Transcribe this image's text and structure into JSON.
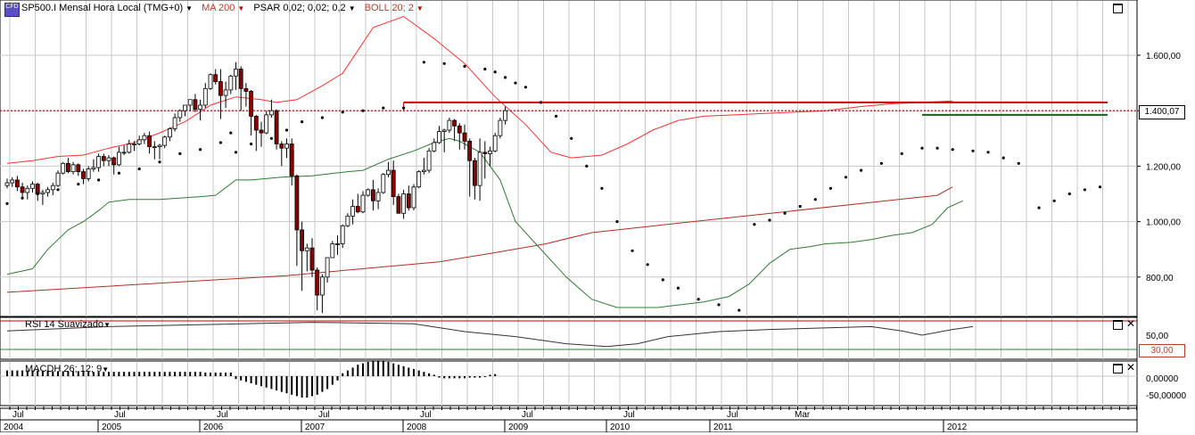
{
  "header": {
    "symbol": "SP500.I",
    "period": "Mensal",
    "timezone": "Hora Local (TMG+0)",
    "ma_label": "MA 200",
    "psar_label": "PSAR 0,02; 0,02; 0,2",
    "boll_label": "BOLL 20; 2"
  },
  "rsi_pane": {
    "label": "RSI 14 Suavizado",
    "level_label": "30,00",
    "ticks": [
      "50,00"
    ]
  },
  "macd_pane": {
    "label": "MACDH 26; 12; 9",
    "ticks": [
      "0,00000",
      "-50,00000"
    ]
  },
  "price_axis": {
    "ticks": [
      "1.600,00",
      "1.400,00",
      "1.200,00",
      "1.000,00",
      "800,00"
    ],
    "last_price": "1.400,07"
  },
  "time_axis": {
    "years": [
      "2004",
      "2005",
      "2006",
      "2007",
      "2008",
      "2009",
      "2010",
      "2011",
      "2012"
    ],
    "months": [
      "Jul",
      "Jul",
      "Jul",
      "Jul",
      "Jul",
      "Jul",
      "Jul",
      "Jul",
      "Mar"
    ]
  },
  "colors": {
    "up": "#ffffff",
    "down": "#8b0000",
    "bollinger_upper": "#ff3030",
    "bollinger_lower": "#2e7d32",
    "ma": "#b03020",
    "resistance": "#cc0000",
    "support": "#1b5e20",
    "grid": "#c8c8c8"
  },
  "chart_data": {
    "type": "candlestick",
    "y_range": [
      680,
      1760
    ],
    "start": "2004-01",
    "last_price": 1400.07,
    "candles": [
      [
        1130,
        1155,
        1120,
        1140
      ],
      [
        1140,
        1160,
        1125,
        1150
      ],
      [
        1150,
        1165,
        1110,
        1125
      ],
      [
        1125,
        1140,
        1085,
        1105
      ],
      [
        1105,
        1130,
        1080,
        1120
      ],
      [
        1120,
        1145,
        1105,
        1135
      ],
      [
        1135,
        1140,
        1075,
        1100
      ],
      [
        1100,
        1115,
        1060,
        1105
      ],
      [
        1105,
        1125,
        1090,
        1115
      ],
      [
        1115,
        1140,
        1095,
        1130
      ],
      [
        1130,
        1185,
        1125,
        1175
      ],
      [
        1175,
        1215,
        1170,
        1210
      ],
      [
        1210,
        1230,
        1175,
        1180
      ],
      [
        1180,
        1215,
        1170,
        1205
      ],
      [
        1205,
        1210,
        1165,
        1180
      ],
      [
        1180,
        1190,
        1135,
        1155
      ],
      [
        1155,
        1200,
        1145,
        1190
      ],
      [
        1190,
        1225,
        1180,
        1195
      ],
      [
        1195,
        1245,
        1180,
        1235
      ],
      [
        1235,
        1245,
        1200,
        1220
      ],
      [
        1220,
        1240,
        1200,
        1230
      ],
      [
        1230,
        1235,
        1170,
        1205
      ],
      [
        1205,
        1270,
        1200,
        1250
      ],
      [
        1250,
        1275,
        1240,
        1250
      ],
      [
        1250,
        1295,
        1245,
        1280
      ],
      [
        1280,
        1290,
        1255,
        1280
      ],
      [
        1280,
        1310,
        1275,
        1295
      ],
      [
        1295,
        1320,
        1280,
        1310
      ],
      [
        1310,
        1325,
        1245,
        1270
      ],
      [
        1270,
        1290,
        1225,
        1270
      ],
      [
        1270,
        1280,
        1225,
        1275
      ],
      [
        1275,
        1310,
        1265,
        1305
      ],
      [
        1305,
        1340,
        1290,
        1335
      ],
      [
        1335,
        1390,
        1325,
        1375
      ],
      [
        1375,
        1405,
        1360,
        1400
      ],
      [
        1400,
        1420,
        1380,
        1420
      ],
      [
        1420,
        1440,
        1400,
        1440
      ],
      [
        1440,
        1460,
        1395,
        1405
      ],
      [
        1405,
        1440,
        1365,
        1420
      ],
      [
        1420,
        1500,
        1410,
        1480
      ],
      [
        1480,
        1535,
        1475,
        1530
      ],
      [
        1530,
        1550,
        1495,
        1505
      ],
      [
        1505,
        1550,
        1370,
        1455
      ],
      [
        1455,
        1505,
        1410,
        1475
      ],
      [
        1475,
        1530,
        1460,
        1525
      ],
      [
        1525,
        1575,
        1475,
        1550
      ],
      [
        1550,
        1560,
        1400,
        1480
      ],
      [
        1480,
        1500,
        1415,
        1470
      ],
      [
        1470,
        1475,
        1310,
        1380
      ],
      [
        1380,
        1385,
        1255,
        1330
      ],
      [
        1330,
        1360,
        1270,
        1320
      ],
      [
        1320,
        1400,
        1315,
        1385
      ],
      [
        1385,
        1440,
        1375,
        1400
      ],
      [
        1400,
        1405,
        1260,
        1280
      ],
      [
        1280,
        1290,
        1200,
        1265
      ],
      [
        1265,
        1300,
        1230,
        1280
      ],
      [
        1280,
        1300,
        1130,
        1165
      ],
      [
        1165,
        1170,
        840,
        970
      ],
      [
        970,
        1000,
        750,
        895
      ],
      [
        895,
        920,
        820,
        905
      ],
      [
        905,
        940,
        800,
        825
      ],
      [
        825,
        835,
        680,
        735
      ],
      [
        735,
        810,
        670,
        800
      ],
      [
        800,
        870,
        780,
        870
      ],
      [
        870,
        930,
        875,
        920
      ],
      [
        920,
        950,
        880,
        920
      ],
      [
        920,
        990,
        905,
        985
      ],
      [
        985,
        1030,
        980,
        1020
      ],
      [
        1020,
        1080,
        990,
        1055
      ],
      [
        1055,
        1100,
        1030,
        1035
      ],
      [
        1035,
        1110,
        1030,
        1095
      ],
      [
        1095,
        1120,
        1090,
        1115
      ],
      [
        1115,
        1150,
        1040,
        1075
      ],
      [
        1075,
        1120,
        1045,
        1105
      ],
      [
        1105,
        1175,
        1100,
        1170
      ],
      [
        1170,
        1215,
        1160,
        1185
      ],
      [
        1185,
        1220,
        1060,
        1090
      ],
      [
        1090,
        1100,
        1030,
        1030
      ],
      [
        1030,
        1115,
        1010,
        1100
      ],
      [
        1100,
        1130,
        1040,
        1050
      ],
      [
        1050,
        1135,
        1040,
        1125
      ],
      [
        1125,
        1185,
        1120,
        1180
      ],
      [
        1180,
        1230,
        1170,
        1185
      ],
      [
        1185,
        1265,
        1175,
        1255
      ],
      [
        1255,
        1300,
        1250,
        1285
      ],
      [
        1285,
        1345,
        1280,
        1325
      ],
      [
        1325,
        1335,
        1250,
        1330
      ],
      [
        1330,
        1375,
        1320,
        1365
      ],
      [
        1365,
        1370,
        1290,
        1345
      ],
      [
        1345,
        1355,
        1260,
        1320
      ],
      [
        1320,
        1350,
        1260,
        1290
      ],
      [
        1290,
        1300,
        1090,
        1220
      ],
      [
        1220,
        1230,
        1080,
        1130
      ],
      [
        1130,
        1300,
        1075,
        1250
      ],
      [
        1250,
        1290,
        1155,
        1245
      ],
      [
        1245,
        1270,
        1200,
        1255
      ],
      [
        1255,
        1320,
        1250,
        1310
      ],
      [
        1310,
        1375,
        1300,
        1365
      ],
      [
        1365,
        1415,
        1350,
        1400
      ]
    ],
    "ma200": [
      [
        0,
        745
      ],
      [
        55,
        805
      ],
      [
        85,
        855
      ],
      [
        95,
        885
      ],
      [
        106,
        920
      ],
      [
        115,
        960
      ],
      [
        140,
        1010
      ],
      [
        183,
        1095
      ],
      [
        186,
        1125
      ]
    ],
    "bollinger_upper": [
      [
        0,
        1210
      ],
      [
        5,
        1220
      ],
      [
        10,
        1235
      ],
      [
        15,
        1240
      ],
      [
        20,
        1265
      ],
      [
        25,
        1285
      ],
      [
        30,
        1320
      ],
      [
        35,
        1360
      ],
      [
        40,
        1420
      ],
      [
        45,
        1450
      ],
      [
        50,
        1440
      ],
      [
        53,
        1430
      ],
      [
        57,
        1440
      ],
      [
        62,
        1490
      ],
      [
        66,
        1535
      ],
      [
        72,
        1700
      ],
      [
        78,
        1740
      ],
      [
        84,
        1660
      ],
      [
        90,
        1570
      ],
      [
        96,
        1450
      ],
      [
        102,
        1350
      ],
      [
        107,
        1250
      ],
      [
        111,
        1230
      ],
      [
        117,
        1240
      ],
      [
        122,
        1280
      ],
      [
        127,
        1330
      ],
      [
        132,
        1365
      ],
      [
        137,
        1380
      ],
      [
        143,
        1385
      ],
      [
        149,
        1390
      ],
      [
        155,
        1395
      ],
      [
        161,
        1400
      ],
      [
        168,
        1415
      ],
      [
        174,
        1425
      ],
      [
        180,
        1430
      ],
      [
        186,
        1435
      ]
    ],
    "bollinger_lower": [
      [
        0,
        810
      ],
      [
        5,
        830
      ],
      [
        8,
        900
      ],
      [
        12,
        970
      ],
      [
        15,
        1000
      ],
      [
        18,
        1040
      ],
      [
        20,
        1070
      ],
      [
        24,
        1080
      ],
      [
        30,
        1080
      ],
      [
        38,
        1090
      ],
      [
        41,
        1095
      ],
      [
        45,
        1150
      ],
      [
        48,
        1150
      ],
      [
        54,
        1160
      ],
      [
        60,
        1165
      ],
      [
        67,
        1180
      ],
      [
        70,
        1185
      ],
      [
        75,
        1225
      ],
      [
        80,
        1255
      ],
      [
        84,
        1285
      ],
      [
        87,
        1300
      ],
      [
        89,
        1290
      ],
      [
        91,
        1270
      ],
      [
        93,
        1250
      ],
      [
        97,
        1150
      ],
      [
        100,
        1000
      ],
      [
        104,
        920
      ],
      [
        110,
        800
      ],
      [
        115,
        720
      ],
      [
        120,
        690
      ],
      [
        128,
        690
      ],
      [
        137,
        710
      ],
      [
        142,
        730
      ],
      [
        146,
        775
      ],
      [
        150,
        850
      ],
      [
        154,
        900
      ],
      [
        158,
        910
      ],
      [
        161,
        920
      ],
      [
        166,
        925
      ],
      [
        170,
        935
      ],
      [
        174,
        950
      ],
      [
        178,
        960
      ],
      [
        182,
        990
      ],
      [
        185,
        1050
      ],
      [
        188,
        1075
      ]
    ],
    "psar": [
      [
        0,
        1065
      ],
      [
        3,
        1085
      ],
      [
        6,
        1100
      ],
      [
        10,
        1115
      ],
      [
        14,
        1135
      ],
      [
        18,
        1150
      ],
      [
        22,
        1175
      ],
      [
        26,
        1190
      ],
      [
        30,
        1215
      ],
      [
        34,
        1245
      ],
      [
        38,
        1260
      ],
      [
        42,
        1285
      ],
      [
        44,
        1320
      ],
      [
        45,
        1250
      ],
      [
        48,
        1280
      ],
      [
        52,
        1300
      ],
      [
        55,
        1330
      ],
      [
        58,
        1360
      ],
      [
        62,
        1375
      ],
      [
        66,
        1395
      ],
      [
        70,
        1400
      ],
      [
        74,
        1410
      ],
      [
        78,
        1410
      ],
      [
        82,
        1575
      ],
      [
        86,
        1570
      ],
      [
        90,
        1560
      ],
      [
        94,
        1550
      ],
      [
        96,
        1540
      ],
      [
        98,
        1520
      ],
      [
        100,
        1500
      ],
      [
        102,
        1485
      ],
      [
        105,
        1430
      ],
      [
        108,
        1380
      ],
      [
        111,
        1300
      ],
      [
        114,
        1200
      ],
      [
        117,
        1120
      ],
      [
        120,
        1000
      ],
      [
        123,
        895
      ],
      [
        126,
        845
      ],
      [
        129,
        790
      ],
      [
        132,
        760
      ],
      [
        136,
        720
      ],
      [
        140,
        700
      ],
      [
        144,
        680
      ],
      [
        147,
        990
      ],
      [
        150,
        1005
      ],
      [
        153,
        1030
      ],
      [
        156,
        1055
      ],
      [
        159,
        1080
      ],
      [
        162,
        1120
      ],
      [
        165,
        1160
      ],
      [
        168,
        1185
      ],
      [
        172,
        1210
      ],
      [
        176,
        1245
      ],
      [
        180,
        1265
      ],
      [
        183,
        1265
      ],
      [
        186,
        1260
      ],
      [
        190,
        1255
      ],
      [
        193,
        1250
      ],
      [
        196,
        1230
      ],
      [
        199,
        1210
      ],
      [
        203,
        1050
      ],
      [
        206,
        1075
      ],
      [
        209,
        1100
      ],
      [
        212,
        1115
      ],
      [
        215,
        1125
      ]
    ],
    "resistance": [
      [
        0,
        1430
      ],
      [
        215,
        1430
      ]
    ],
    "support": [
      [
        180,
        1385
      ],
      [
        215,
        1385
      ]
    ],
    "rsi": [
      [
        0,
        56
      ],
      [
        20,
        62
      ],
      [
        40,
        65
      ],
      [
        60,
        68
      ],
      [
        80,
        66
      ],
      [
        90,
        55
      ],
      [
        100,
        48
      ],
      [
        110,
        38
      ],
      [
        118,
        34
      ],
      [
        124,
        38
      ],
      [
        130,
        48
      ],
      [
        140,
        55
      ],
      [
        150,
        58
      ],
      [
        160,
        60
      ],
      [
        170,
        62
      ],
      [
        176,
        56
      ],
      [
        180,
        50
      ],
      [
        186,
        58
      ],
      [
        190,
        62
      ]
    ],
    "rsi_levels": [
      70,
      30
    ],
    "macdh": [
      8,
      8,
      8,
      8,
      8,
      8,
      8,
      8,
      8,
      7,
      7,
      7,
      7,
      7,
      7,
      7,
      7,
      6,
      6,
      6,
      6,
      6,
      6,
      6,
      6,
      6,
      6,
      6,
      6,
      6,
      6,
      6,
      6,
      6,
      6,
      6,
      6,
      6,
      6,
      5,
      5,
      5,
      5,
      5,
      5,
      -4,
      -6,
      -8,
      -10,
      -12,
      -14,
      -16,
      -18,
      -20,
      -22,
      -24,
      -26,
      -28,
      -30,
      -30,
      -28,
      -26,
      -22,
      -18,
      -12,
      -6,
      4,
      8,
      12,
      16,
      18,
      20,
      22,
      22,
      22,
      20,
      18,
      16,
      14,
      12,
      10,
      8,
      6,
      4,
      2,
      -2,
      -3,
      -3,
      -3,
      -3,
      -3,
      -2,
      -2,
      -2,
      -1,
      2,
      3
    ]
  }
}
